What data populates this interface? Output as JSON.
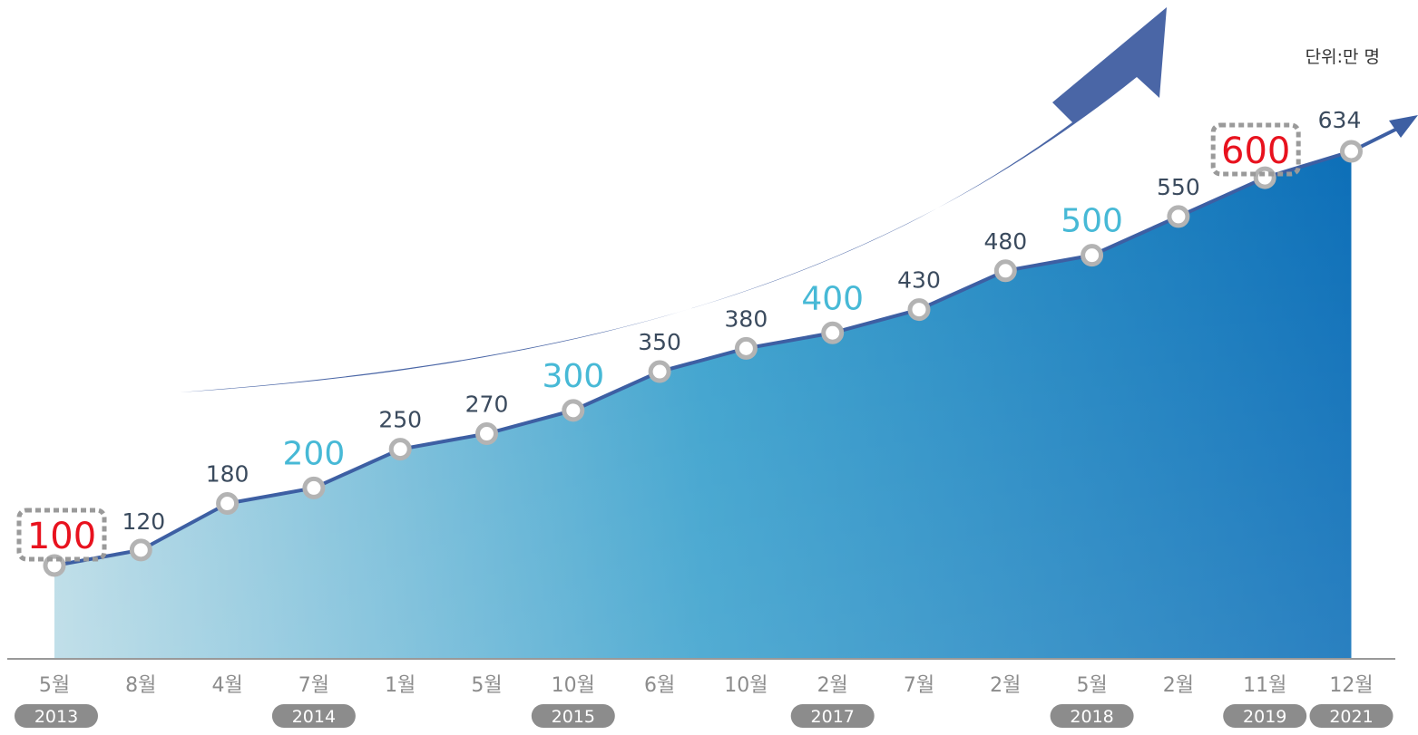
{
  "unit_label": "단위:만 명",
  "colors": {
    "area_light": "#b9dbe6",
    "area_mid": "#3ba1cd",
    "area_dark": "#0d6fb8",
    "line": "#3d5fa3",
    "marker_stroke": "#b3b3b3",
    "label_default": "#3b4b5e",
    "label_milestone": "#47b9d6",
    "label_highlight": "#e8121e",
    "arrow": "#4a66a6",
    "year_pill": "#8c8c8c",
    "month_text": "#8c8c8c",
    "axis": "#999999"
  },
  "chart_data": {
    "type": "area",
    "title": "",
    "xlabel": "",
    "ylabel": "",
    "unit": "단위:만 명",
    "categories": [
      "5월",
      "8월",
      "4월",
      "7월",
      "1월",
      "5월",
      "10월",
      "6월",
      "10월",
      "2월",
      "7월",
      "2월",
      "5월",
      "2월",
      "11월",
      "12월"
    ],
    "values": [
      100,
      120,
      180,
      200,
      250,
      270,
      300,
      350,
      380,
      400,
      430,
      480,
      500,
      550,
      600,
      634
    ],
    "value_labels": [
      "100",
      "120",
      "180",
      "200",
      "250",
      "270",
      "300",
      "350",
      "380",
      "400",
      "430",
      "480",
      "500",
      "550",
      "600",
      "634"
    ],
    "label_styles": [
      "highlight",
      "default",
      "default",
      "milestone",
      "default",
      "default",
      "milestone",
      "default",
      "default",
      "milestone",
      "default",
      "default",
      "milestone",
      "default",
      "highlight",
      "default"
    ],
    "years": [
      {
        "label": "2013",
        "index": 0
      },
      {
        "label": "2014",
        "index": 3
      },
      {
        "label": "2015",
        "index": 6
      },
      {
        "label": "2017",
        "index": 9
      },
      {
        "label": "2018",
        "index": 12
      },
      {
        "label": "2019",
        "index": 14
      },
      {
        "label": "2021",
        "index": 15
      }
    ],
    "ylim": [
      100,
      634
    ],
    "grid": false,
    "legend": "none",
    "trend_arrow": true
  }
}
